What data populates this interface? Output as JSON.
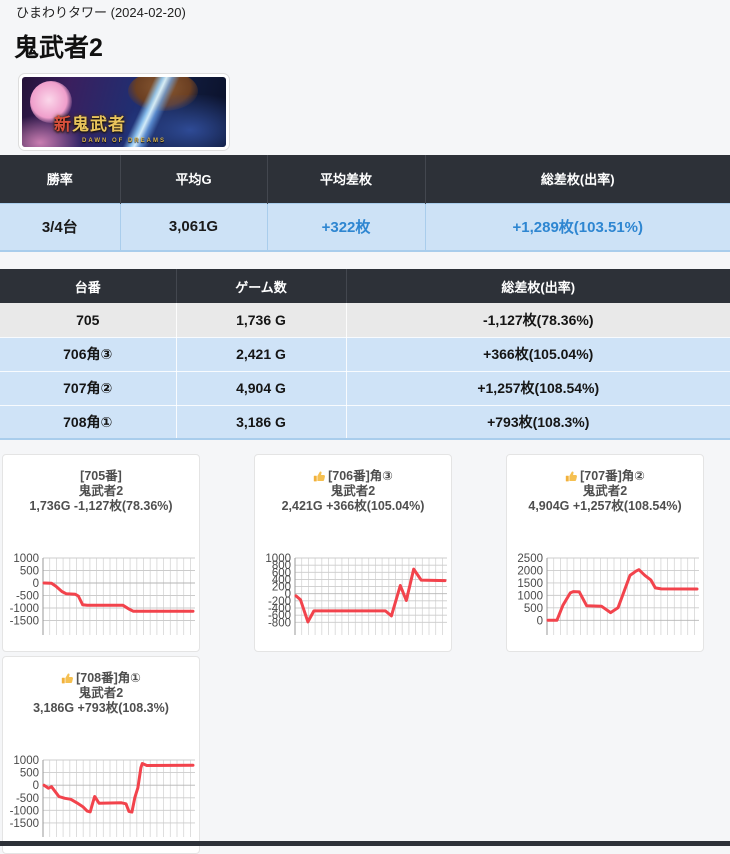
{
  "page": {
    "venue_line": "ひまわりタワー (2024-02-20)",
    "title": "鬼武者2"
  },
  "banner": {
    "logo_main_first": "新",
    "logo_main_rest": "鬼武者",
    "logo_sub": "DAWN OF DREAMS"
  },
  "colors": {
    "accent_blue": "#2e86d1",
    "line_red": "#f2434c",
    "header_dark": "#2d3138",
    "row_blue": "#cfe3f7",
    "row_gray": "#e9e9e9",
    "grid_gray": "#d5d5d5"
  },
  "summary_table": {
    "headers": [
      "勝率",
      "平均G",
      "平均差枚",
      "総差枚(出率)"
    ],
    "row": {
      "win_rate": "3/4台",
      "avg_g": "3,061G",
      "avg_diff": "+322枚",
      "total_diff": "+1,289枚(103.51%)"
    }
  },
  "machine_table": {
    "headers": [
      "台番",
      "ゲーム数",
      "総差枚(出率)"
    ],
    "rows": [
      {
        "dai": "705",
        "games": "1,736 G",
        "diff": "-1,127枚(78.36%)",
        "negative": true
      },
      {
        "dai": "706角③",
        "games": "2,421 G",
        "diff": "+366枚(105.04%)",
        "negative": false
      },
      {
        "dai": "707角②",
        "games": "4,904 G",
        "diff": "+1,257枚(108.54%)",
        "negative": false
      },
      {
        "dai": "708角①",
        "games": "3,186 G",
        "diff": "+793枚(108.3%)",
        "negative": false
      }
    ]
  },
  "chart_data": [
    {
      "type": "line",
      "thumb": false,
      "title_line1": "[705番]",
      "title_line2": "鬼武者2",
      "title_line3": "1,736G -1,127枚(78.36%)",
      "yticks": [
        1000,
        500,
        0,
        -500,
        -1000,
        -1500
      ],
      "ylim": [
        -1800,
        1000
      ],
      "xlim_percent": [
        0,
        100
      ],
      "points": [
        [
          0,
          0
        ],
        [
          5,
          -10
        ],
        [
          8,
          -130
        ],
        [
          12,
          -340
        ],
        [
          15,
          -430
        ],
        [
          21,
          -450
        ],
        [
          23,
          -520
        ],
        [
          26,
          -870
        ],
        [
          29,
          -890
        ],
        [
          53,
          -890
        ],
        [
          57,
          -1040
        ],
        [
          60,
          -1130
        ],
        [
          100,
          -1127
        ]
      ]
    },
    {
      "type": "line",
      "thumb": true,
      "title_line1": "[706番]角③",
      "title_line2": "鬼武者2",
      "title_line3": "2,421G +366枚(105.04%)",
      "yticks": [
        1000,
        800,
        600,
        400,
        200,
        0,
        -200,
        -400,
        -600,
        -800
      ],
      "ylim": [
        -960,
        1000
      ],
      "xlim_percent": [
        0,
        100
      ],
      "points": [
        [
          0,
          -60
        ],
        [
          3,
          -170
        ],
        [
          8,
          -790
        ],
        [
          12,
          -480
        ],
        [
          60,
          -480
        ],
        [
          64,
          -620
        ],
        [
          70,
          230
        ],
        [
          74,
          -190
        ],
        [
          79,
          690
        ],
        [
          84,
          380
        ],
        [
          100,
          366
        ]
      ]
    },
    {
      "type": "line",
      "thumb": true,
      "title_line1": "[707番]角②",
      "title_line2": "鬼武者2",
      "title_line3": "4,904G +1,257枚(108.54%)",
      "yticks": [
        2500,
        2000,
        1500,
        1000,
        500,
        0
      ],
      "ylim": [
        -310,
        2500
      ],
      "xlim_percent": [
        0,
        100
      ],
      "points": [
        [
          0,
          0
        ],
        [
          6,
          0
        ],
        [
          10,
          600
        ],
        [
          15,
          1100
        ],
        [
          17,
          1150
        ],
        [
          21,
          1140
        ],
        [
          26,
          580
        ],
        [
          36,
          560
        ],
        [
          42,
          310
        ],
        [
          47,
          500
        ],
        [
          55,
          1800
        ],
        [
          59,
          1970
        ],
        [
          61,
          2030
        ],
        [
          65,
          1800
        ],
        [
          69,
          1620
        ],
        [
          72,
          1300
        ],
        [
          76,
          1260
        ],
        [
          100,
          1257
        ]
      ]
    },
    {
      "type": "line",
      "thumb": true,
      "title_line1": "[708番]角①",
      "title_line2": "鬼武者2",
      "title_line3": "3,186G +793枚(108.3%)",
      "yticks": [
        1000,
        500,
        0,
        -500,
        -1000,
        -1500
      ],
      "ylim": [
        -1780,
        1000
      ],
      "xlim_percent": [
        0,
        100
      ],
      "points": [
        [
          0,
          0
        ],
        [
          3,
          -120
        ],
        [
          5,
          -60
        ],
        [
          10,
          -450
        ],
        [
          14,
          -520
        ],
        [
          18,
          -560
        ],
        [
          22,
          -700
        ],
        [
          26,
          -850
        ],
        [
          29,
          -1030
        ],
        [
          31,
          -1060
        ],
        [
          33,
          -640
        ],
        [
          34,
          -450
        ],
        [
          37,
          -720
        ],
        [
          52,
          -700
        ],
        [
          55,
          -740
        ],
        [
          57,
          -1040
        ],
        [
          59,
          -1070
        ],
        [
          61,
          -480
        ],
        [
          63,
          -100
        ],
        [
          65,
          700
        ],
        [
          66,
          860
        ],
        [
          69,
          780
        ],
        [
          100,
          793
        ]
      ]
    }
  ]
}
